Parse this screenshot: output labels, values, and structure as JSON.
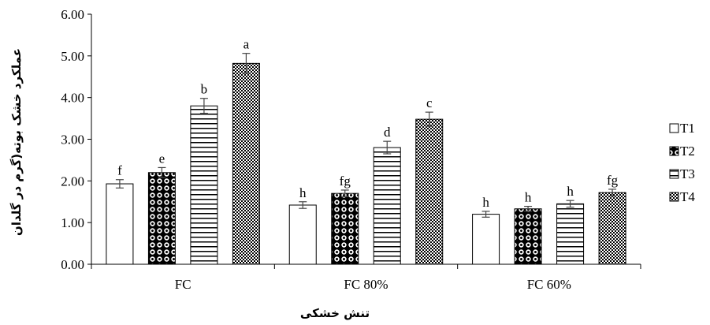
{
  "chart_data": {
    "type": "bar",
    "xlabel": "تنش خشکی",
    "ylabel": "عملکرد خشک بوته(گرم در گلدان",
    "ylim": [
      0,
      6
    ],
    "yticks": [
      "0.00",
      "1.00",
      "2.00",
      "3.00",
      "4.00",
      "5.00",
      "6.00"
    ],
    "grid": false,
    "legend_position": "right",
    "categories": [
      "FC",
      "FC 80%",
      "FC 60%"
    ],
    "series": [
      {
        "name": "T1",
        "pattern": "white",
        "values": [
          1.93,
          1.42,
          1.2
        ],
        "errors": [
          0.1,
          0.08,
          0.07
        ],
        "letters": [
          "f",
          "h",
          "h"
        ]
      },
      {
        "name": "T2",
        "pattern": "dots",
        "values": [
          2.2,
          1.7,
          1.33
        ],
        "errors": [
          0.12,
          0.08,
          0.06
        ],
        "letters": [
          "e",
          "fg",
          "h"
        ]
      },
      {
        "name": "T3",
        "pattern": "horizontal-lines",
        "values": [
          3.8,
          2.8,
          1.45
        ],
        "errors": [
          0.18,
          0.15,
          0.08
        ],
        "letters": [
          "b",
          "d",
          "h"
        ]
      },
      {
        "name": "T4",
        "pattern": "crosshatch-dense",
        "values": [
          4.82,
          3.48,
          1.72
        ],
        "errors": [
          0.24,
          0.17,
          0.08
        ],
        "letters": [
          "a",
          "c",
          "fg"
        ]
      }
    ]
  }
}
